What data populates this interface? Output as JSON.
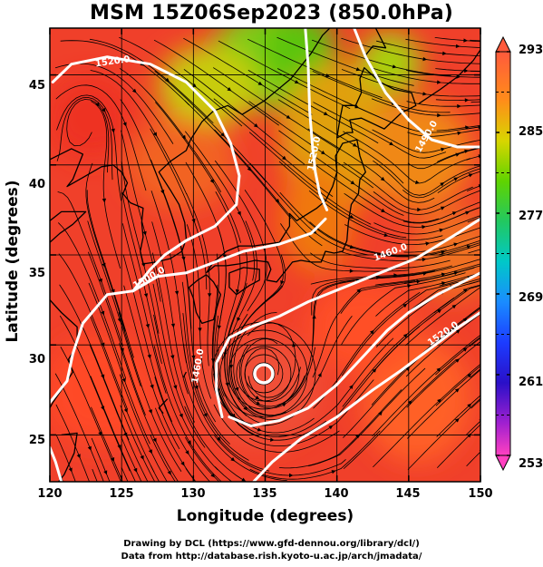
{
  "figure": {
    "title": "MSM 15Z06Sep2023 (850.0hPa)",
    "x_label": "Longitude (degrees)",
    "y_label": "Latitude  (degrees)",
    "credit_line1": "Drawing by DCL (https://www.gfd-dennou.org/library/dcl/)",
    "credit_line2": "Data from http://database.rish.kyoto-u.ac.jp/arch/jmadata/"
  },
  "map": {
    "lon_range": [
      120,
      150
    ],
    "lat_range": [
      22.4,
      47.6
    ],
    "lon_ticks": [
      120,
      125,
      130,
      135,
      140,
      145,
      150
    ],
    "lat_ticks": [
      25,
      30,
      35,
      40,
      45
    ],
    "contour_labels": [
      {
        "text": "1520.0",
        "lon": 124.4,
        "lat": 45.6,
        "rotate": -8
      },
      {
        "text": "1520.0",
        "lon": 138.6,
        "lat": 40.6,
        "rotate": -78
      },
      {
        "text": "1490.0",
        "lon": 146.4,
        "lat": 41.5,
        "rotate": -60
      },
      {
        "text": "1500.0",
        "lon": 127.0,
        "lat": 33.6,
        "rotate": -30
      },
      {
        "text": "1460.0",
        "lon": 143.8,
        "lat": 35.0,
        "rotate": -20
      },
      {
        "text": "1460.0",
        "lon": 130.5,
        "lat": 28.8,
        "rotate": -80
      },
      {
        "text": "1520.0",
        "lon": 147.5,
        "lat": 30.5,
        "rotate": -35
      }
    ],
    "contours": [
      [
        [
          120.2,
          44.6
        ],
        [
          121.5,
          45.6
        ],
        [
          124.0,
          46.0
        ],
        [
          127.0,
          45.6
        ],
        [
          129.5,
          44.6
        ],
        [
          131.5,
          43.0
        ],
        [
          132.6,
          41.2
        ],
        [
          133.2,
          39.4
        ],
        [
          133.0,
          37.8
        ],
        [
          131.5,
          36.6
        ],
        [
          129.5,
          35.8
        ],
        [
          128.0,
          35.0
        ],
        [
          127.0,
          34.2
        ],
        [
          125.8,
          33.0
        ]
      ],
      [
        [
          137.8,
          47.6
        ],
        [
          138.0,
          45.5
        ],
        [
          138.1,
          43.0
        ],
        [
          138.3,
          41.0
        ],
        [
          138.5,
          39.6
        ],
        [
          138.8,
          38.4
        ],
        [
          139.3,
          37.5
        ]
      ],
      [
        [
          141.2,
          47.6
        ],
        [
          142.0,
          46.0
        ],
        [
          143.4,
          44.0
        ],
        [
          145.0,
          42.5
        ],
        [
          146.6,
          41.4
        ],
        [
          148.4,
          41.0
        ],
        [
          150.0,
          41.0
        ]
      ],
      [
        [
          125.8,
          33.0
        ],
        [
          127.5,
          33.8
        ],
        [
          129.5,
          34.0
        ],
        [
          131.5,
          34.6
        ],
        [
          133.5,
          35.2
        ],
        [
          136.0,
          35.6
        ],
        [
          138.2,
          36.2
        ],
        [
          139.2,
          37.0
        ]
      ],
      [
        [
          132.0,
          26.0
        ],
        [
          131.6,
          27.5
        ],
        [
          131.6,
          29.0
        ],
        [
          132.5,
          30.4
        ],
        [
          134.0,
          31.0
        ],
        [
          136.0,
          31.6
        ],
        [
          138.0,
          32.4
        ],
        [
          140.5,
          33.2
        ],
        [
          143.0,
          34.0
        ],
        [
          145.5,
          34.8
        ],
        [
          148.0,
          36.0
        ],
        [
          150.0,
          37.0
        ]
      ],
      [
        [
          120.0,
          26.8
        ],
        [
          121.2,
          28.0
        ],
        [
          121.6,
          29.5
        ],
        [
          122.3,
          31.2
        ],
        [
          124.0,
          32.8
        ],
        [
          125.8,
          33.0
        ]
      ],
      [
        [
          120.0,
          24.3
        ],
        [
          120.4,
          23.5
        ],
        [
          120.8,
          22.4
        ]
      ],
      [
        [
          132.5,
          26.0
        ],
        [
          134.0,
          25.5
        ],
        [
          136.0,
          25.8
        ],
        [
          138.0,
          26.5
        ],
        [
          140.0,
          27.8
        ],
        [
          142.0,
          29.5
        ],
        [
          143.5,
          30.8
        ],
        [
          145.0,
          31.8
        ],
        [
          147.0,
          32.8
        ],
        [
          149.0,
          33.6
        ],
        [
          150.0,
          34.0
        ]
      ],
      [
        [
          134.2,
          22.4
        ],
        [
          135.5,
          23.5
        ],
        [
          137.5,
          24.8
        ],
        [
          140.0,
          26.0
        ],
        [
          142.5,
          27.5
        ],
        [
          144.5,
          28.6
        ],
        [
          146.5,
          29.8
        ],
        [
          148.5,
          31.0
        ],
        [
          150.0,
          31.8
        ]
      ]
    ],
    "center_ring": {
      "lon": 134.9,
      "lat": 28.4
    },
    "coast_rules": [
      "Korea",
      "Japan",
      "Taiwan",
      "China-coast",
      "Sakhalin"
    ]
  },
  "colorbar": {
    "min": 253,
    "max": 293,
    "tick_labels": [
      "293",
      "285",
      "277",
      "269",
      "261",
      "253"
    ]
  }
}
